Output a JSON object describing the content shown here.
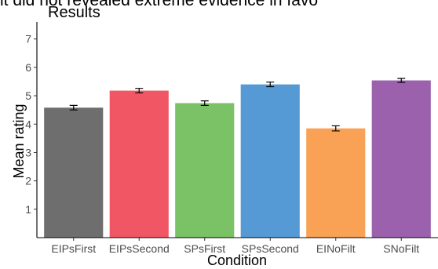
{
  "cutoff_text": "it did not revealed extreme evidence in favo",
  "chart_data": {
    "type": "bar",
    "title": "Results",
    "xlabel": "Condition",
    "ylabel": "Mean rating",
    "categories": [
      "EIPsFirst",
      "EIPsSecond",
      "SPsFirst",
      "SPsSecond",
      "EINoFilt",
      "SNoFilt"
    ],
    "values": [
      4.58,
      5.18,
      4.74,
      5.4,
      3.85,
      5.54
    ],
    "errors": [
      0.08,
      0.08,
      0.08,
      0.08,
      0.09,
      0.07
    ],
    "colors": [
      "#6e6e6e",
      "#f05663",
      "#7bc266",
      "#559ad5",
      "#f9a155",
      "#9b61ac"
    ],
    "yticks": [
      1,
      2,
      3,
      4,
      5,
      6,
      7
    ],
    "ylim": [
      0,
      7.6
    ],
    "grid": false
  }
}
